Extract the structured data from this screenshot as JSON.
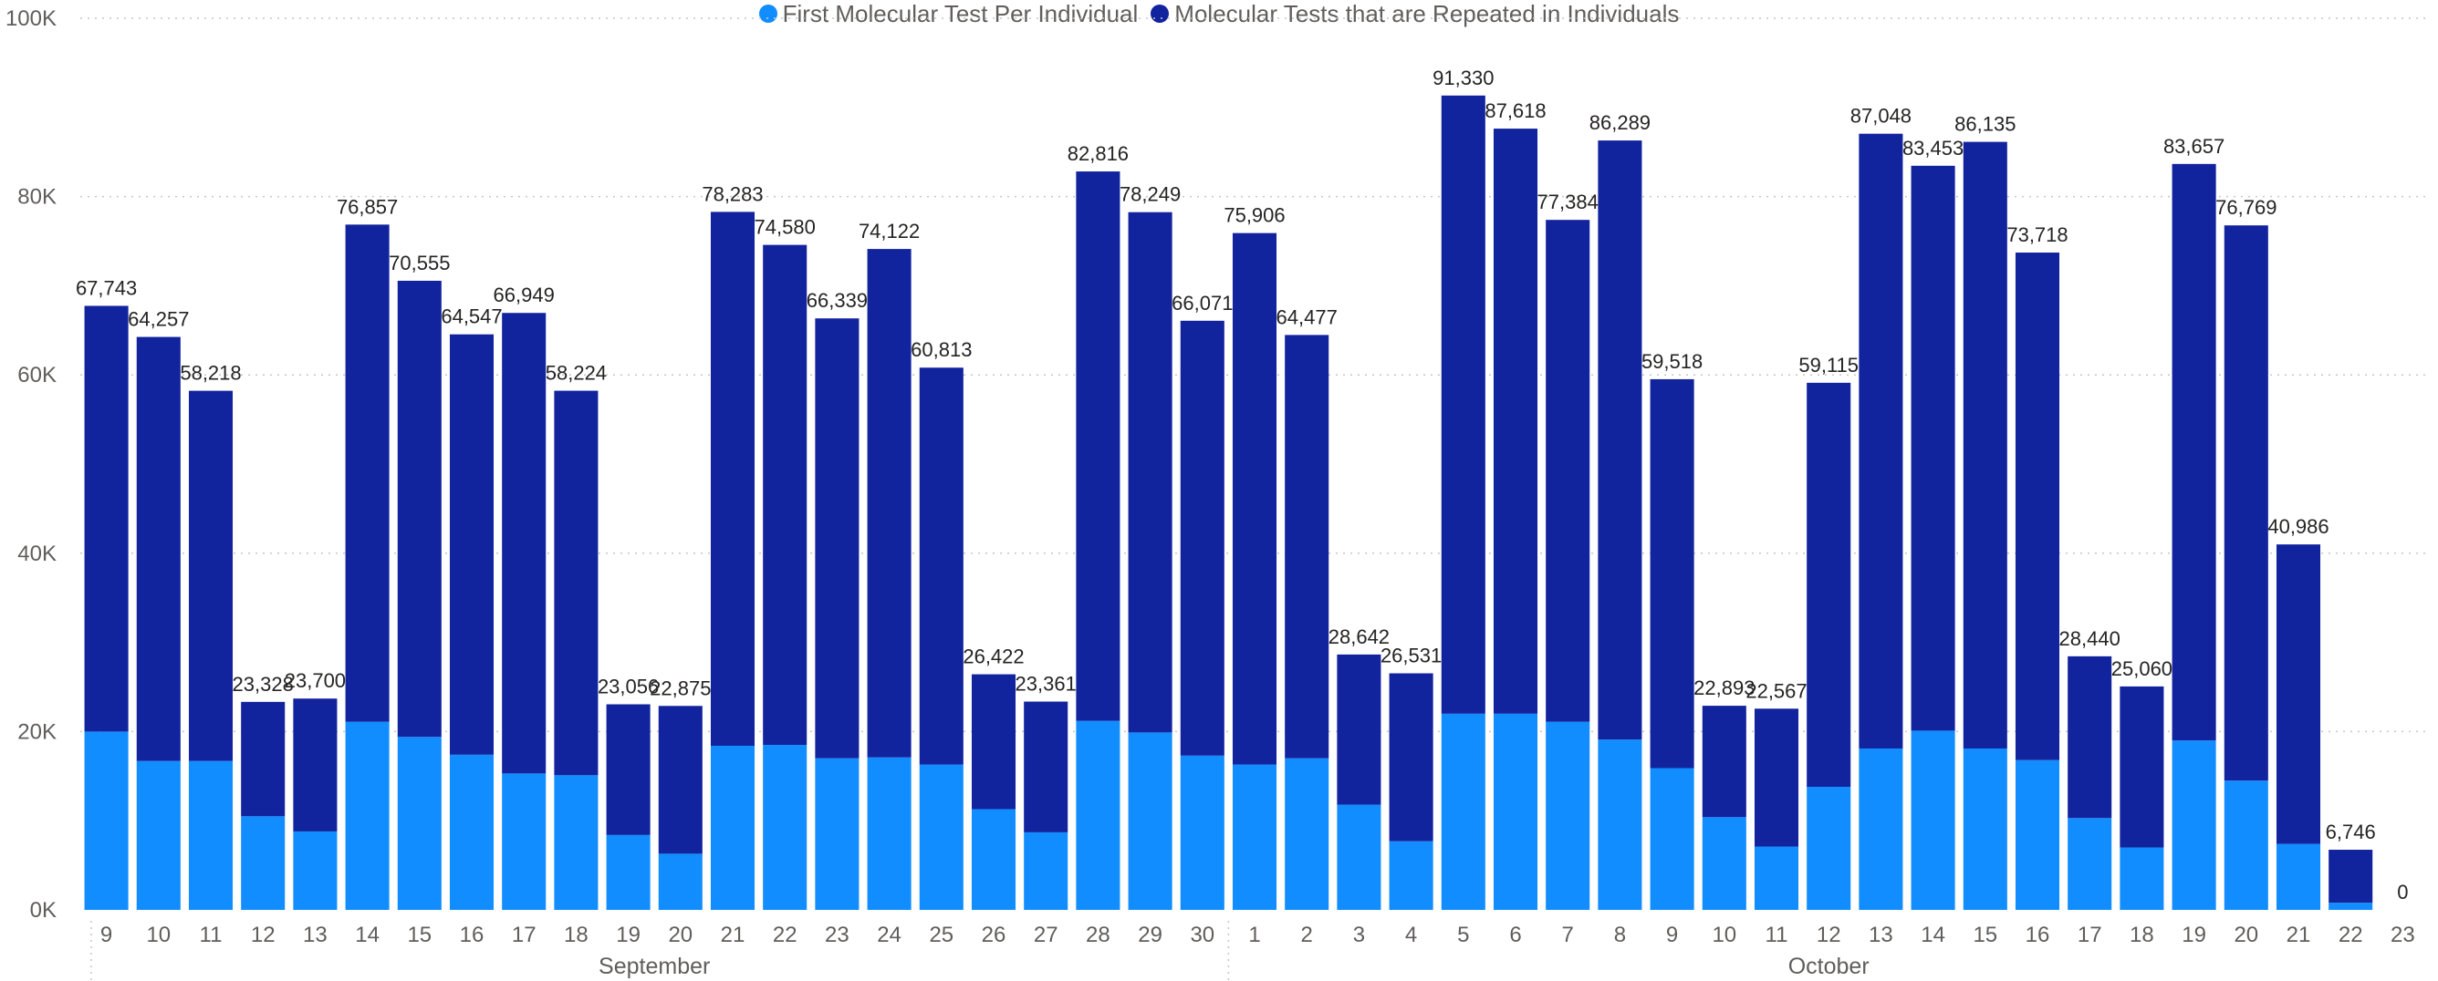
{
  "chart_data": {
    "type": "bar",
    "stacked": true,
    "categories": [
      "9",
      "10",
      "11",
      "12",
      "13",
      "14",
      "15",
      "16",
      "17",
      "18",
      "19",
      "20",
      "21",
      "22",
      "23",
      "24",
      "25",
      "26",
      "27",
      "28",
      "29",
      "30",
      "1",
      "2",
      "3",
      "4",
      "5",
      "6",
      "7",
      "8",
      "9",
      "10",
      "11",
      "12",
      "13",
      "14",
      "15",
      "16",
      "17",
      "18",
      "19",
      "20",
      "21",
      "22",
      "23"
    ],
    "months": [
      {
        "name": "September",
        "start_index": 0,
        "end_index": 21
      },
      {
        "name": "October",
        "start_index": 22,
        "end_index": 44
      }
    ],
    "series": [
      {
        "name": "First Molecular Test Per Individual",
        "color": "#118dff",
        "values": [
          20000,
          16700,
          16700,
          10500,
          8800,
          21100,
          19400,
          17400,
          15300,
          15100,
          8400,
          6300,
          18400,
          18500,
          17000,
          17100,
          16300,
          11300,
          8700,
          21200,
          19900,
          17300,
          16300,
          17000,
          11800,
          7700,
          22000,
          22000,
          21100,
          19100,
          15900,
          10400,
          7100,
          13800,
          18100,
          20100,
          18100,
          16800,
          10300,
          7000,
          19000,
          14500,
          7400,
          800,
          0
        ]
      },
      {
        "name": "Molecular Tests that are Repeated in Individuals",
        "color": "#12239e",
        "values": [
          47743,
          47557,
          41518,
          12828,
          14900,
          55757,
          51155,
          47147,
          51649,
          43124,
          14656,
          16575,
          59883,
          56080,
          49339,
          57022,
          44513,
          15122,
          14661,
          61616,
          58349,
          48771,
          59606,
          47477,
          16842,
          18831,
          69330,
          65618,
          56284,
          67189,
          43618,
          12493,
          15467,
          45315,
          68948,
          63353,
          68035,
          56918,
          18140,
          18060,
          64657,
          62269,
          33586,
          5946,
          0
        ]
      }
    ],
    "totals": [
      "67,743",
      "64,257",
      "58,218",
      "23,328",
      "23,700",
      "76,857",
      "70,555",
      "64,547",
      "66,949",
      "58,224",
      "23,056",
      "22,875",
      "78,283",
      "74,580",
      "66,339",
      "74,122",
      "60,813",
      "26,422",
      "23,361",
      "82,816",
      "78,249",
      "66,071",
      "75,906",
      "64,477",
      "28,642",
      "26,531",
      "91,330",
      "87,618",
      "77,384",
      "86,289",
      "59,518",
      "22,893",
      "22,567",
      "59,115",
      "87,048",
      "83,453",
      "86,135",
      "73,718",
      "28,440",
      "25,060",
      "83,657",
      "76,769",
      "40,986",
      "6,746",
      "0"
    ],
    "y_ticks": [
      "0K",
      "20K",
      "40K",
      "60K",
      "80K",
      "100K"
    ],
    "ylim": [
      0,
      100000
    ],
    "gridlines": "dotted",
    "legend_position": "top-center"
  }
}
